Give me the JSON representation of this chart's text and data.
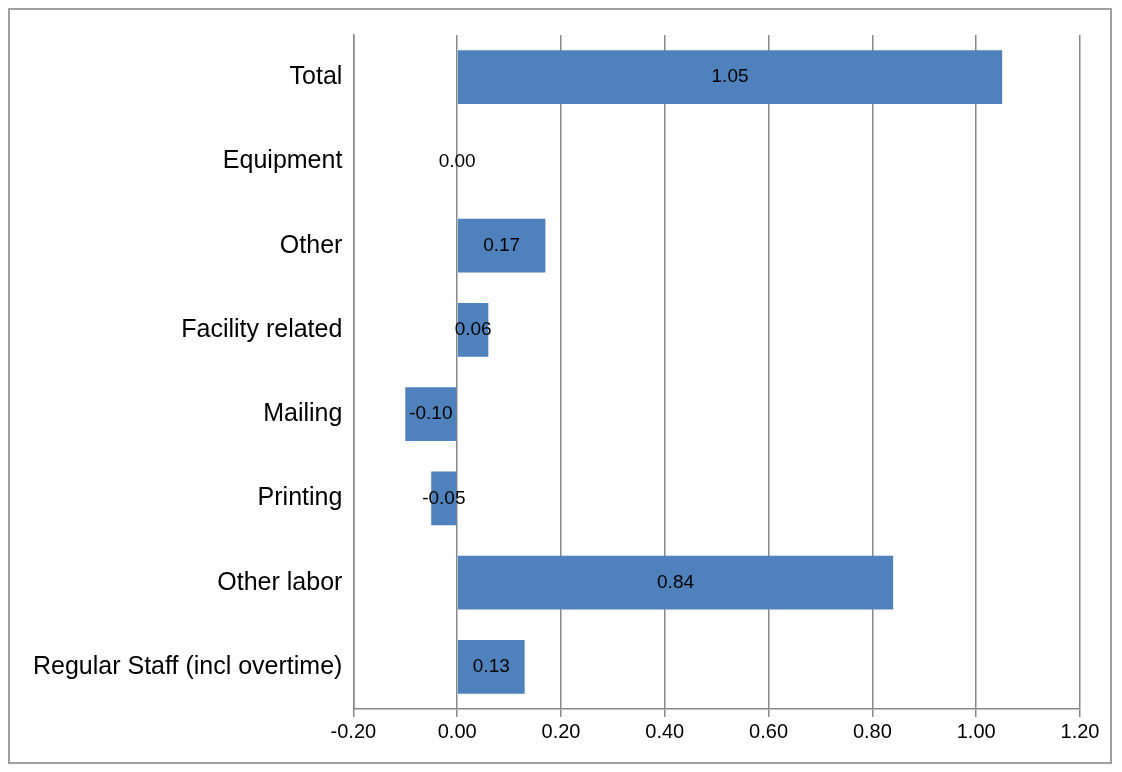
{
  "chart_data": {
    "type": "bar",
    "orientation": "horizontal",
    "categories": [
      "Total",
      "Equipment",
      "Other",
      "Facility related",
      "Mailing",
      "Printing",
      "Other labor",
      "Regular Staff (incl overtime)"
    ],
    "values": [
      1.05,
      0.0,
      0.17,
      0.06,
      -0.1,
      -0.05,
      0.84,
      0.13
    ],
    "value_labels": [
      "1.05",
      "0.00",
      "0.17",
      "0.06",
      "-0.10",
      "-0.05",
      "0.84",
      "0.13"
    ],
    "color": "#4f81bd",
    "xlim": [
      -0.2,
      1.2
    ],
    "xticks": [
      {
        "value": -0.2,
        "label": "-0.20"
      },
      {
        "value": 0,
        "label": "0.00"
      },
      {
        "value": 0.2,
        "label": "0.20"
      },
      {
        "value": 0.4,
        "label": "0.40"
      },
      {
        "value": 0.6,
        "label": "0.60"
      },
      {
        "value": 0.8,
        "label": "0.80"
      },
      {
        "value": 1.0,
        "label": "1.00"
      },
      {
        "value": 1.2,
        "label": "1.20"
      }
    ],
    "grid": "x",
    "legend": false
  }
}
